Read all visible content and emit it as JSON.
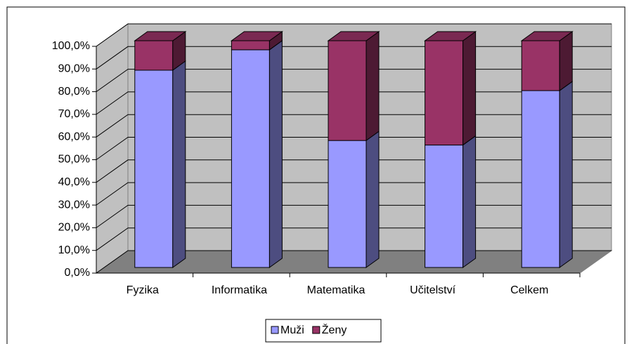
{
  "chart_data": {
    "type": "bar3d_stacked",
    "categories": [
      "Fyzika",
      "Informatika",
      "Matematika",
      "Učitelství",
      "Celkem"
    ],
    "series": [
      {
        "name": "Muži",
        "color": "#9999ff",
        "values": [
          87,
          96,
          56,
          54,
          78
        ]
      },
      {
        "name": "Ženy",
        "color": "#993366",
        "values": [
          13,
          4,
          44,
          46,
          22
        ]
      }
    ],
    "ylim": [
      0,
      100
    ],
    "yticks": [
      {
        "value": 0,
        "label": "0,0%"
      },
      {
        "value": 10,
        "label": "10,0%"
      },
      {
        "value": 20,
        "label": "20,0%"
      },
      {
        "value": 30,
        "label": "30,0%"
      },
      {
        "value": 40,
        "label": "40,0%"
      },
      {
        "value": 50,
        "label": "50,0%"
      },
      {
        "value": 60,
        "label": "60,0%"
      },
      {
        "value": 70,
        "label": "70,0%"
      },
      {
        "value": 80,
        "label": "80,0%"
      },
      {
        "value": 90,
        "label": "90,0%"
      },
      {
        "value": 100,
        "label": "100,0%"
      }
    ],
    "grid": true,
    "legend": "bottom"
  }
}
